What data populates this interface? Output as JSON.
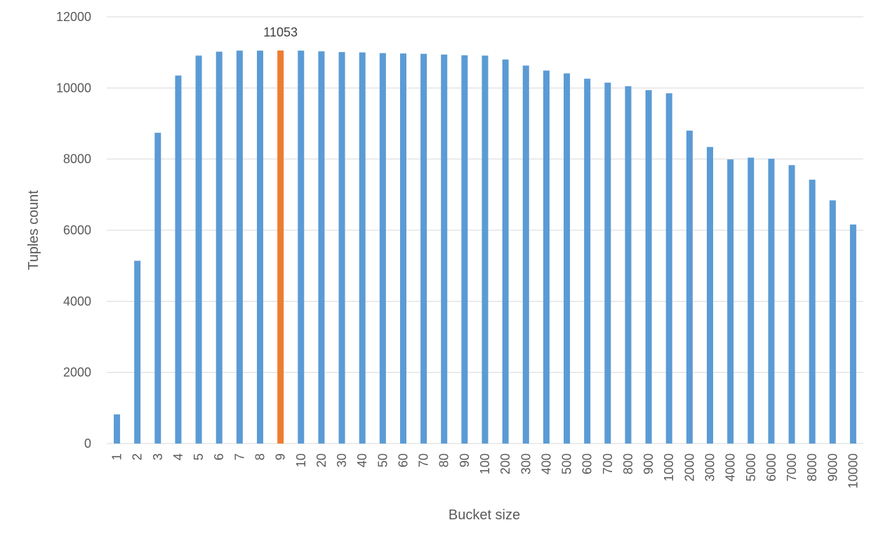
{
  "chart_data": {
    "type": "bar",
    "title": "",
    "xlabel": "Bucket size",
    "ylabel": "Tuples count",
    "ylim": [
      0,
      12000
    ],
    "yticks": [
      0,
      2000,
      4000,
      6000,
      8000,
      10000,
      12000
    ],
    "grid": true,
    "legend": "none",
    "categories": [
      "1",
      "2",
      "3",
      "4",
      "5",
      "6",
      "7",
      "8",
      "9",
      "10",
      "20",
      "30",
      "40",
      "50",
      "60",
      "70",
      "80",
      "90",
      "100",
      "200",
      "300",
      "400",
      "500",
      "600",
      "700",
      "800",
      "900",
      "1000",
      "2000",
      "3000",
      "4000",
      "5000",
      "6000",
      "7000",
      "8000",
      "9000",
      "10000"
    ],
    "values": [
      820,
      5140,
      8740,
      10350,
      10910,
      11020,
      11050,
      11050,
      11053,
      11050,
      11030,
      11010,
      11000,
      10980,
      10970,
      10960,
      10940,
      10920,
      10910,
      10800,
      10630,
      10490,
      10410,
      10260,
      10150,
      10050,
      9940,
      9850,
      8800,
      8340,
      7990,
      8040,
      8010,
      7830,
      7420,
      6840,
      6160
    ],
    "highlight_index": 8,
    "data_labels": [
      {
        "index": 8,
        "text": "11053"
      }
    ],
    "colors": {
      "bar": "#5B9BD5",
      "highlight": "#ED7D31",
      "grid": "#D9D9D9",
      "text": "#595959"
    }
  }
}
